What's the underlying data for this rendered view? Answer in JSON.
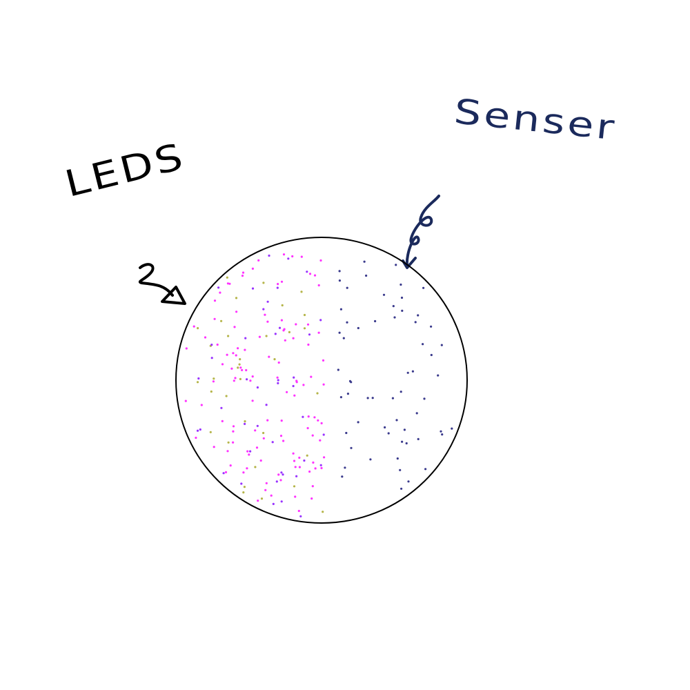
{
  "labels": {
    "leds": "LEDS",
    "sensor": "Senser"
  }
}
